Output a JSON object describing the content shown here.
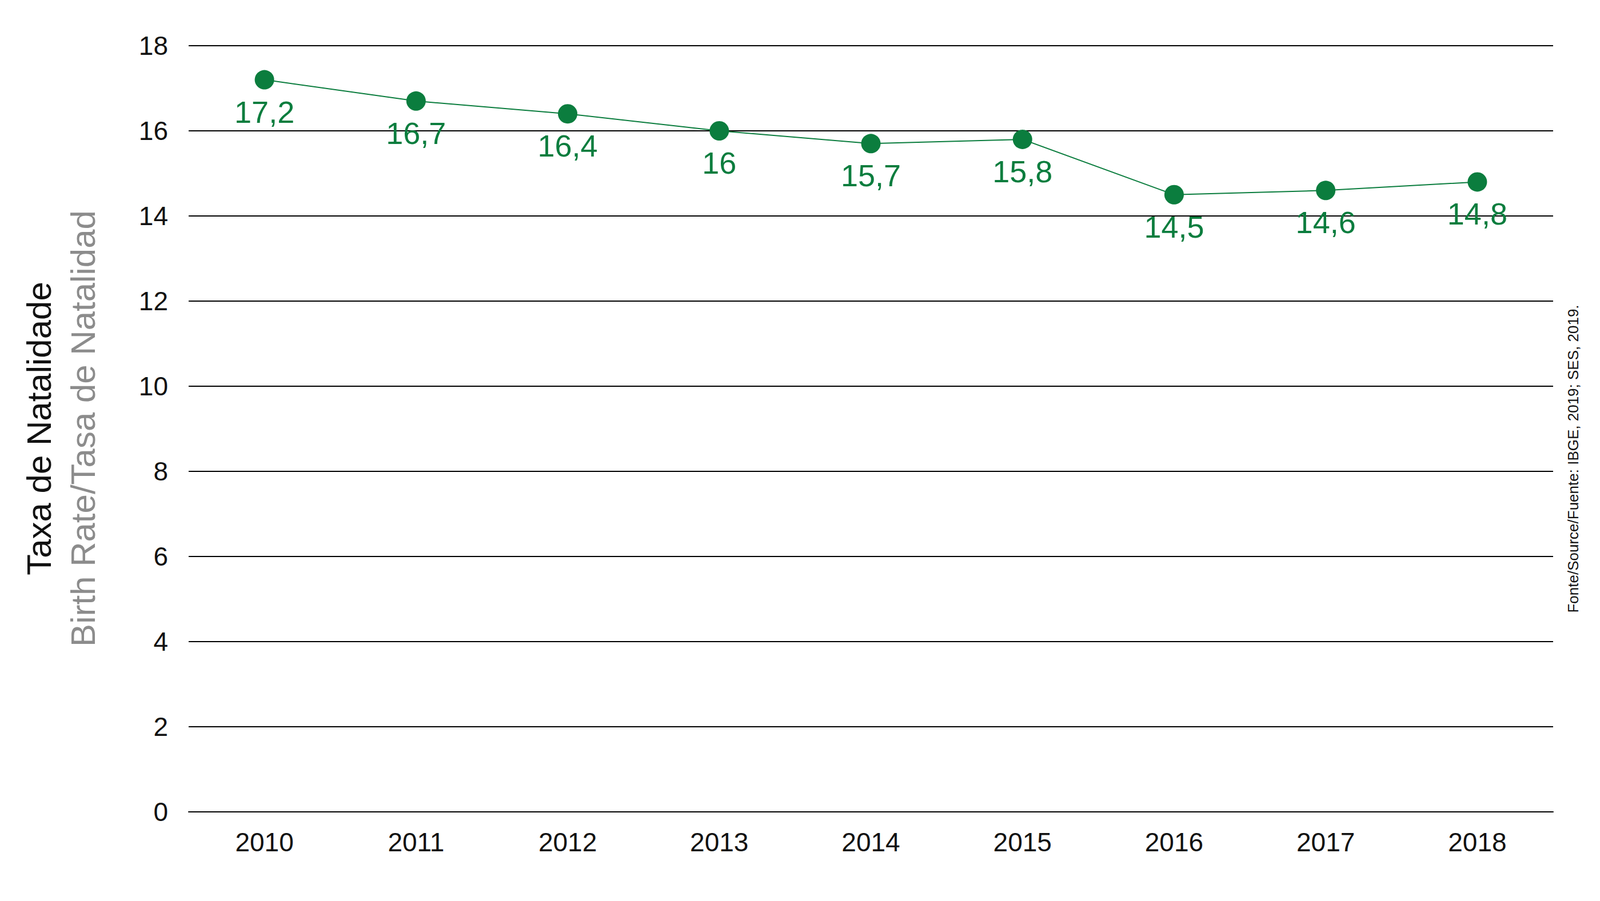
{
  "chart_data": {
    "type": "line",
    "ylabel": "Taxa de Natalidade",
    "ylabel_subtitle": "Birth Rate/Tasa de Natalidad",
    "source": "Fonte/Source/Fuente: IBGE, 2019; SES, 2019.",
    "categories": [
      "2010",
      "2011",
      "2012",
      "2013",
      "2014",
      "2015",
      "2016",
      "2017",
      "2018"
    ],
    "values": [
      17.2,
      16.7,
      16.4,
      16,
      15.7,
      15.8,
      14.5,
      14.6,
      14.8
    ],
    "value_labels": [
      "17,2",
      "16,7",
      "16,4",
      "16",
      "15,7",
      "15,8",
      "14,5",
      "14,6",
      "14,8"
    ],
    "color": "#0b7d3e",
    "marker": "circle",
    "ylim": [
      0,
      18
    ],
    "yticks": [
      0,
      2,
      4,
      6,
      8,
      10,
      12,
      14,
      16,
      18
    ],
    "grid": true,
    "data_labels": true
  }
}
